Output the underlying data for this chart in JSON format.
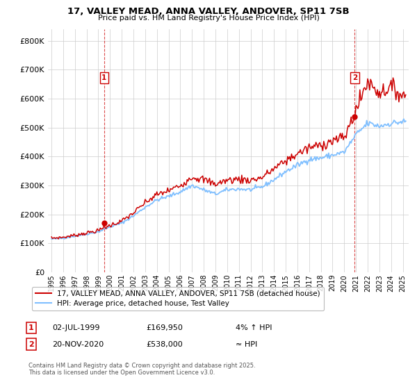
{
  "title": "17, VALLEY MEAD, ANNA VALLEY, ANDOVER, SP11 7SB",
  "subtitle": "Price paid vs. HM Land Registry's House Price Index (HPI)",
  "background_color": "#ffffff",
  "grid_color": "#cccccc",
  "sale_color": "#cc0000",
  "hpi_color": "#7fbfff",
  "annotation_box_color": "#cc0000",
  "ylim": [
    0,
    840000
  ],
  "yticks": [
    0,
    100000,
    200000,
    300000,
    400000,
    500000,
    600000,
    700000,
    800000
  ],
  "ytick_labels": [
    "£0",
    "£100K",
    "£200K",
    "£300K",
    "£400K",
    "£500K",
    "£600K",
    "£700K",
    "£800K"
  ],
  "xlim_start": 1994.7,
  "xlim_end": 2025.5,
  "xticks": [
    1995,
    1996,
    1997,
    1998,
    1999,
    2000,
    2001,
    2002,
    2003,
    2004,
    2005,
    2006,
    2007,
    2008,
    2009,
    2010,
    2011,
    2012,
    2013,
    2014,
    2015,
    2016,
    2017,
    2018,
    2019,
    2020,
    2021,
    2022,
    2023,
    2024,
    2025
  ],
  "sale1_x": 1999.5,
  "sale1_y": 169950,
  "sale1_label": "1",
  "sale1_date": "02-JUL-1999",
  "sale1_price": "£169,950",
  "sale1_hpi": "4% ↑ HPI",
  "sale2_x": 2020.9,
  "sale2_y": 538000,
  "sale2_label": "2",
  "sale2_date": "20-NOV-2020",
  "sale2_price": "£538,000",
  "sale2_hpi": "≈ HPI",
  "legend_line1": "17, VALLEY MEAD, ANNA VALLEY, ANDOVER, SP11 7SB (detached house)",
  "legend_line2": "HPI: Average price, detached house, Test Valley",
  "footer": "Contains HM Land Registry data © Crown copyright and database right 2025.\nThis data is licensed under the Open Government Licence v3.0.",
  "hpi_annual": {
    "1995": 115000,
    "1996": 118000,
    "1997": 125000,
    "1998": 132000,
    "1999": 140000,
    "2000": 157000,
    "2001": 170000,
    "2002": 195000,
    "2003": 225000,
    "2004": 250000,
    "2005": 262000,
    "2006": 278000,
    "2007": 300000,
    "2008": 285000,
    "2009": 270000,
    "2010": 285000,
    "2011": 288000,
    "2012": 285000,
    "2013": 295000,
    "2014": 320000,
    "2015": 348000,
    "2016": 370000,
    "2017": 390000,
    "2018": 395000,
    "2019": 405000,
    "2020": 415000,
    "2021": 475000,
    "2022": 515000,
    "2023": 505000,
    "2024": 515000,
    "2025": 520000
  },
  "price_annual": {
    "1995": 118000,
    "1996": 121000,
    "1997": 128000,
    "1998": 136000,
    "1999": 144000,
    "2000": 162000,
    "2001": 177000,
    "2002": 205000,
    "2003": 240000,
    "2004": 268000,
    "2005": 282000,
    "2006": 300000,
    "2007": 330000,
    "2008": 320000,
    "2009": 305000,
    "2010": 318000,
    "2011": 322000,
    "2012": 318000,
    "2013": 328000,
    "2014": 358000,
    "2015": 385000,
    "2016": 410000,
    "2017": 430000,
    "2018": 440000,
    "2019": 455000,
    "2020": 465000,
    "2021": 560000,
    "2022": 660000,
    "2023": 620000,
    "2024": 640000,
    "2025": 610000
  }
}
